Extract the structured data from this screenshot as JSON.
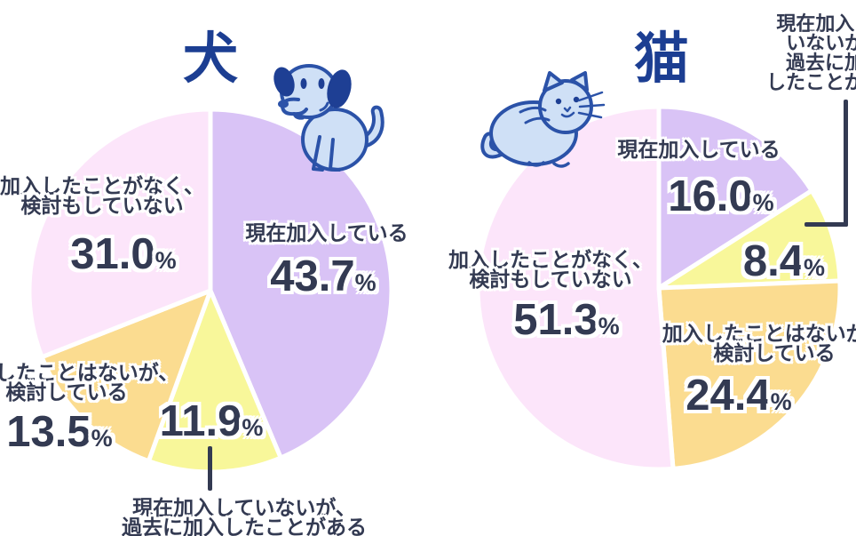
{
  "percent_sign": "%",
  "colors": {
    "background": "#ffffff",
    "title_text": "#1c3e92",
    "label_text": "#333a52",
    "callout_line": "#333a52",
    "slice_divider": "#ffffff",
    "illustration_fill": "#cfe0f6",
    "illustration_stroke": "#2b52a8",
    "illustration_ear": "#1e3f94"
  },
  "chart_data": [
    {
      "type": "pie",
      "title": "犬",
      "icon": "dog-icon",
      "direction": "clockwise",
      "start_angle": "12-oclock",
      "legend_position": "around-slices",
      "slices": [
        {
          "label": "現在加入している",
          "label_lines": [
            "現在加入している"
          ],
          "value": 43.7,
          "display": "43.7",
          "color": "#d9c3f6"
        },
        {
          "label": "現在加入していないが、過去に加入したことがある",
          "label_lines": [
            "現在加入していないが、",
            "過去に加入したことがある"
          ],
          "value": 11.9,
          "display": "11.9",
          "color": "#f8f79a"
        },
        {
          "label": "加入したことはないが、検討している",
          "label_lines": [
            "加入したことはないが、",
            "検討している"
          ],
          "value": 13.5,
          "display": "13.5",
          "color": "#fbdc90"
        },
        {
          "label": "加入したことがなく、検討もしていない",
          "label_lines": [
            "加入したことがなく、",
            "検討もしていない"
          ],
          "value": 31.0,
          "display": "31.0",
          "color": "#fce5fa"
        }
      ]
    },
    {
      "type": "pie",
      "title": "猫",
      "icon": "cat-icon",
      "direction": "clockwise",
      "start_angle": "12-oclock",
      "legend_position": "around-slices",
      "slices": [
        {
          "label": "現在加入している",
          "label_lines": [
            "現在加入している"
          ],
          "value": 16.0,
          "display": "16.0",
          "color": "#d9c3f6"
        },
        {
          "label": "現在加入していないが、過去に加入したことがある",
          "label_lines": [
            "現在加入して",
            "いないが、",
            "過去に加入",
            "したことがある"
          ],
          "value": 8.4,
          "display": "8.4",
          "color": "#f8f79a"
        },
        {
          "label": "加入したことはないが、検討している",
          "label_lines": [
            "加入したことはないが、",
            "検討している"
          ],
          "value": 24.4,
          "display": "24.4",
          "color": "#fbdc90"
        },
        {
          "label": "加入したことがなく、検討もしていない",
          "label_lines": [
            "加入したことがなく、",
            "検討もしていない"
          ],
          "value": 51.3,
          "display": "51.3",
          "color": "#fce5fa"
        }
      ]
    }
  ]
}
